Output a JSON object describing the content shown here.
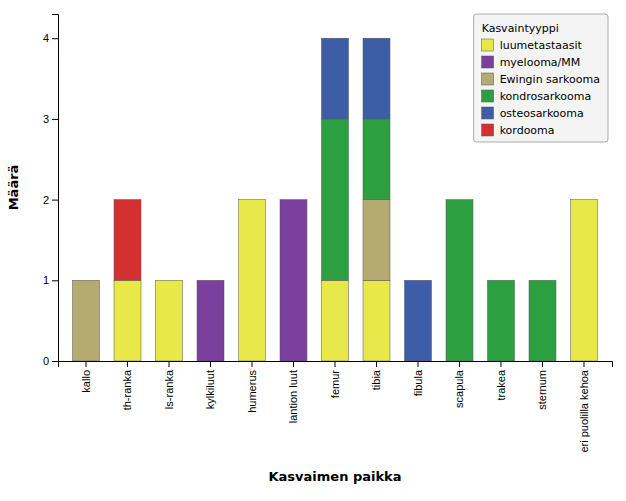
{
  "chart_data": {
    "type": "bar",
    "stacked": true,
    "xlabel": "Kasvaimen paikka",
    "ylabel": "Määrä",
    "categories": [
      "kallo",
      "th-ranka",
      "ls-ranka",
      "kylkiluut",
      "humerus",
      "lantion luut",
      "femur",
      "tibia",
      "fibula",
      "scapula",
      "trakea",
      "sternum",
      "eri puolilla kehoa"
    ],
    "series": [
      {
        "name": "luumetastaasit",
        "color": "#e8e84a",
        "values": [
          0,
          1,
          1,
          0,
          2,
          0,
          1,
          1,
          0,
          0,
          0,
          0,
          2
        ]
      },
      {
        "name": "myelooma/MM",
        "color": "#7b3f9e",
        "values": [
          0,
          0,
          0,
          1,
          0,
          2,
          0,
          0,
          0,
          0,
          0,
          0,
          0
        ]
      },
      {
        "name": "Ewingin sarkooma",
        "color": "#b5aa72",
        "values": [
          1,
          0,
          0,
          0,
          0,
          0,
          0,
          1,
          0,
          0,
          0,
          0,
          0
        ]
      },
      {
        "name": "kondrosarkooma",
        "color": "#2ca040",
        "values": [
          0,
          0,
          0,
          0,
          0,
          0,
          2,
          1,
          0,
          2,
          1,
          1,
          0
        ]
      },
      {
        "name": "osteosarkooma",
        "color": "#3d5da7",
        "values": [
          0,
          0,
          0,
          0,
          0,
          0,
          1,
          1,
          1,
          0,
          0,
          0,
          0
        ]
      },
      {
        "name": "kordooma",
        "color": "#d43030",
        "values": [
          0,
          1,
          0,
          0,
          0,
          0,
          0,
          0,
          0,
          0,
          0,
          0,
          0
        ]
      }
    ],
    "legend_title": "Kasvaintyyppi",
    "legend": "upper right",
    "ylim": [
      0,
      4.3
    ],
    "yticks": [
      0,
      1,
      2,
      3,
      4
    ],
    "grid": false
  }
}
